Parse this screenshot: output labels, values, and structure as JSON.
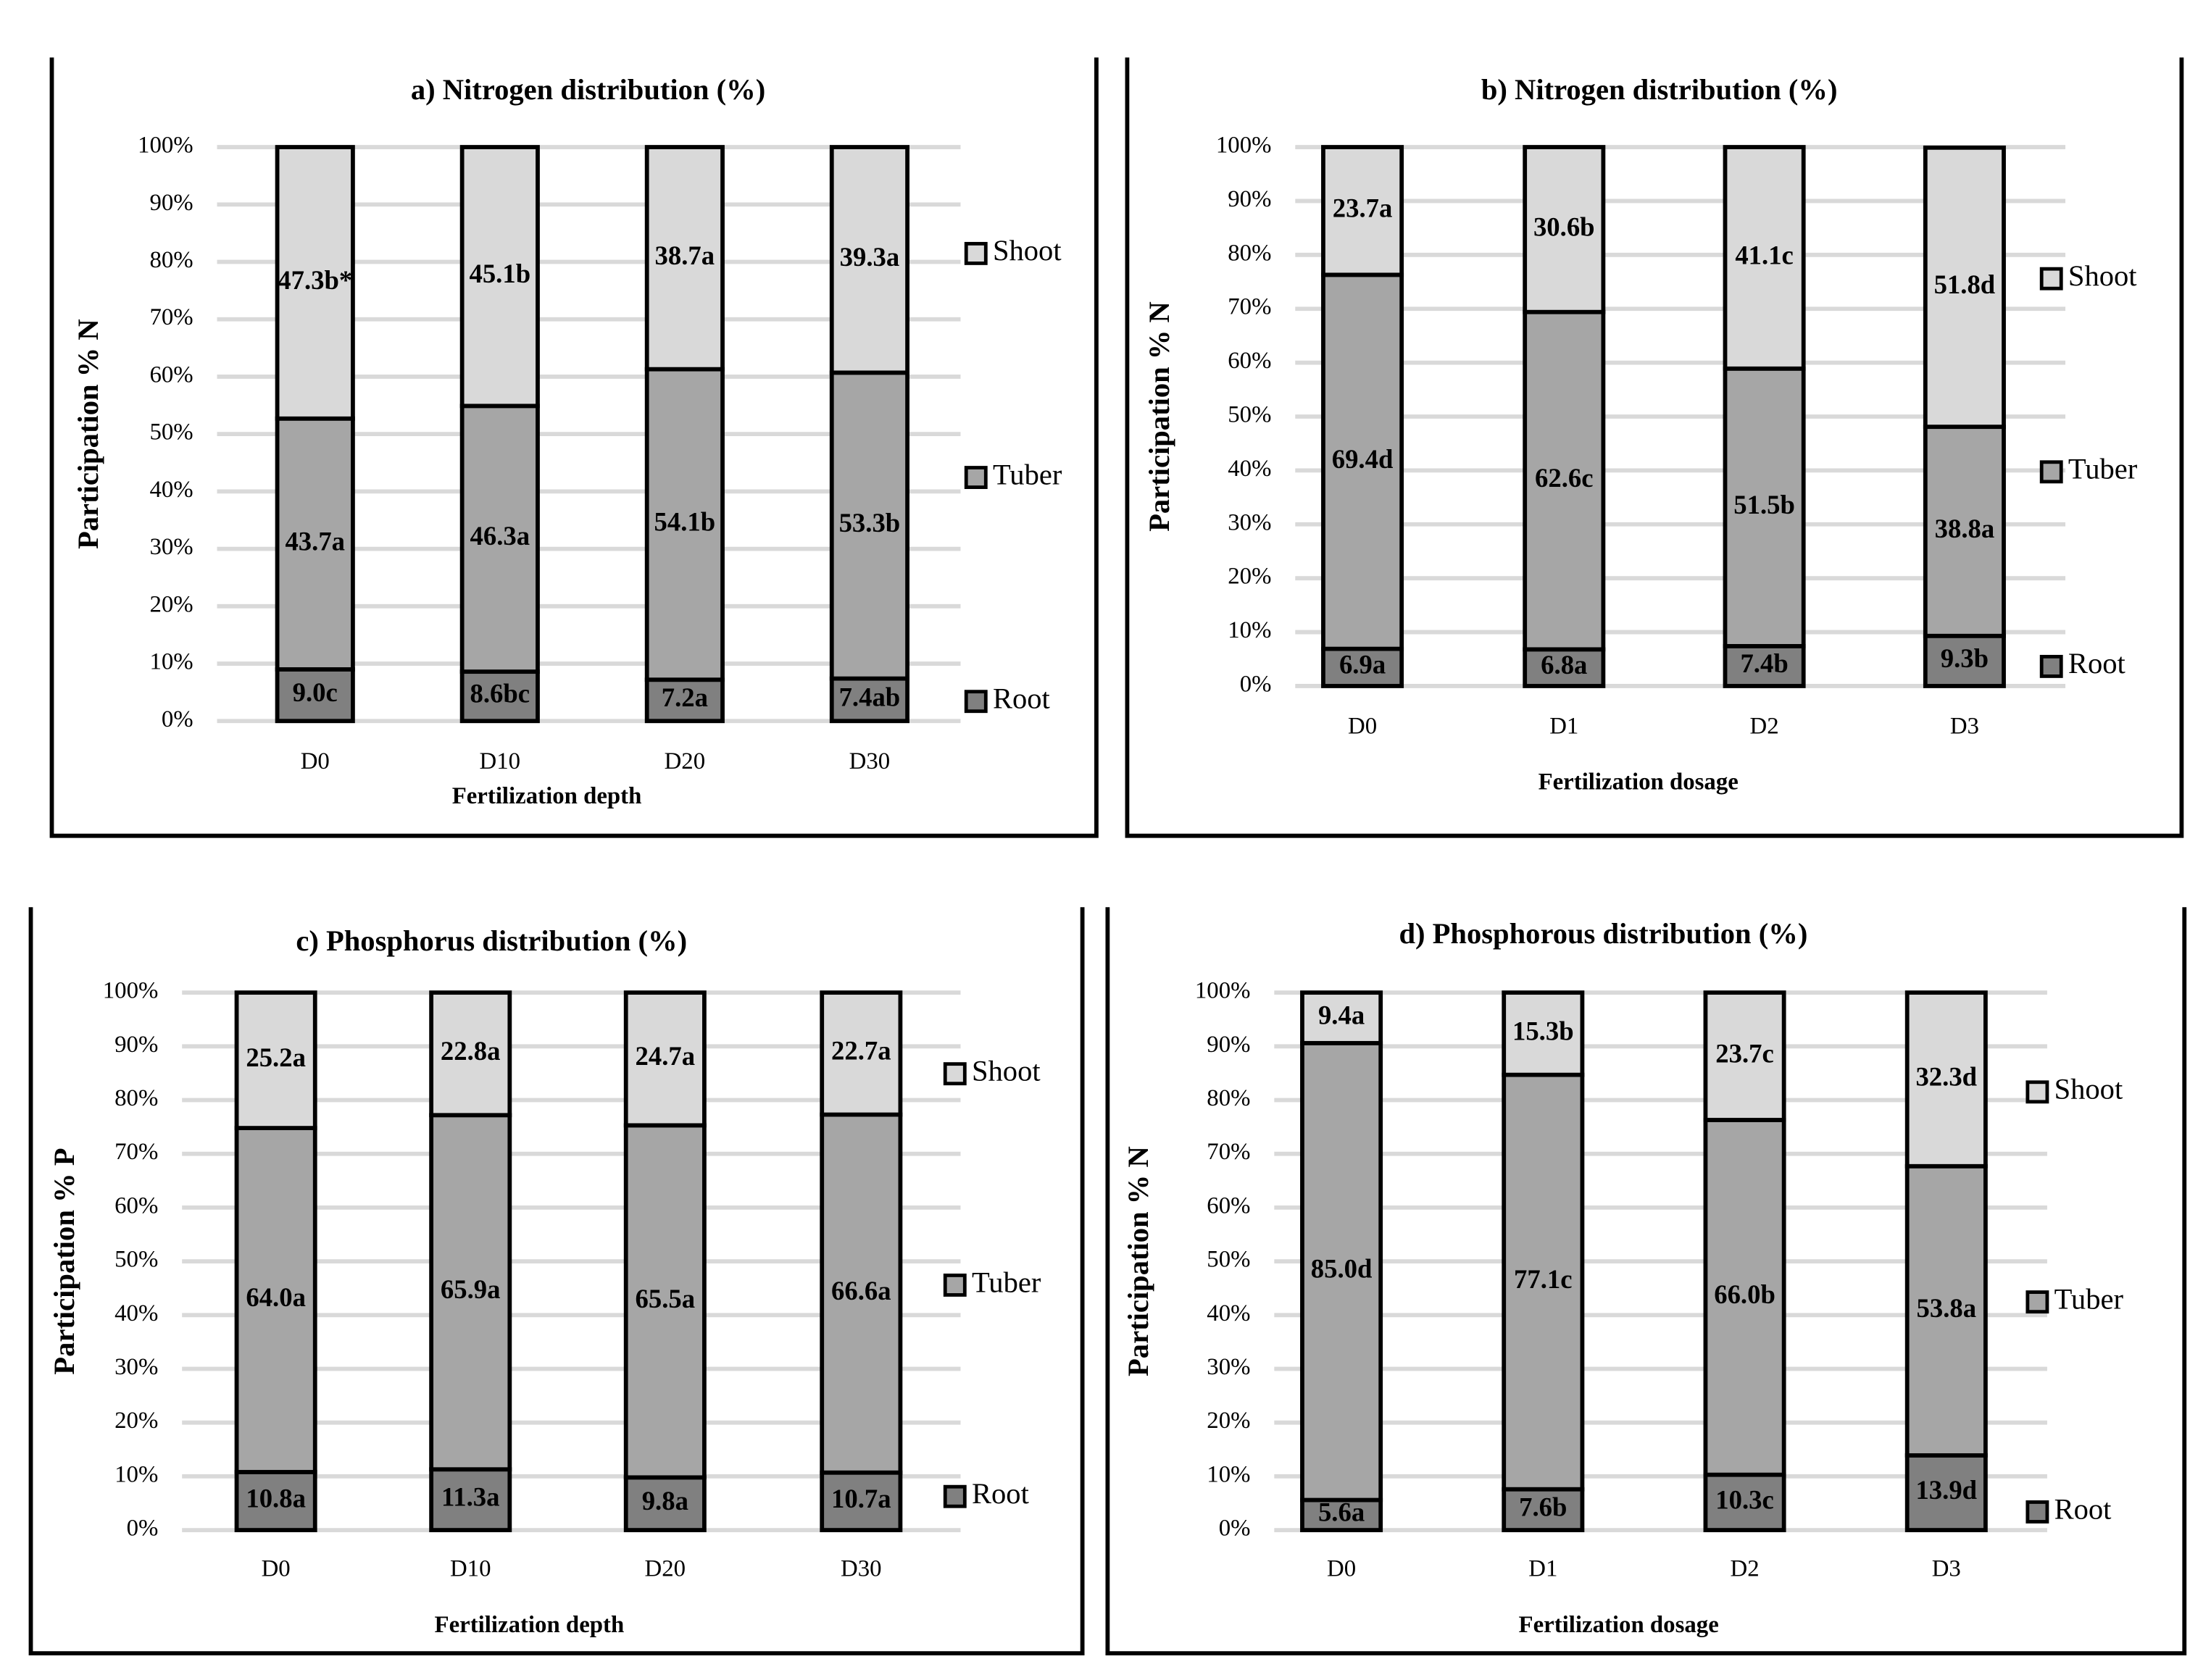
{
  "chart_data": [
    {
      "type": "bar",
      "stacked": true,
      "title": "a) Nitrogen distribution (%)",
      "ylabel": "Participation % N",
      "xlabel": "Fertilization depth",
      "categories": [
        "D0",
        "D10",
        "D20",
        "D30"
      ],
      "series": [
        {
          "name": "Root",
          "color": "#808080",
          "values": [
            9.0,
            8.6,
            7.2,
            7.4
          ],
          "value_labels": [
            "9.0c",
            "8.6bc",
            "7.2a",
            "7.4ab"
          ]
        },
        {
          "name": "Tuber",
          "color": "#a6a6a6",
          "values": [
            43.7,
            46.3,
            54.1,
            53.3
          ],
          "value_labels": [
            "43.7a",
            "46.3a",
            "54.1b",
            "53.3b"
          ]
        },
        {
          "name": "Shoot",
          "color": "#d9d9d9",
          "values": [
            47.3,
            45.1,
            38.7,
            39.3
          ],
          "value_labels": [
            "47.3b*",
            "45.1b",
            "38.7a",
            "39.3a"
          ]
        }
      ],
      "ylim": [
        0,
        100
      ],
      "yticks": [
        {
          "value": 0,
          "label": "0%"
        },
        {
          "value": 10,
          "label": "10%"
        },
        {
          "value": 20,
          "label": "20%"
        },
        {
          "value": 30,
          "label": "30%"
        },
        {
          "value": 40,
          "label": "40%"
        },
        {
          "value": 50,
          "label": "50%"
        },
        {
          "value": 60,
          "label": "60%"
        },
        {
          "value": 70,
          "label": "70%"
        },
        {
          "value": 80,
          "label": "80%"
        },
        {
          "value": 90,
          "label": "90%"
        },
        {
          "value": 100,
          "label": "100%"
        }
      ],
      "grid": true,
      "legend": "right"
    },
    {
      "type": "bar",
      "stacked": true,
      "title": "b) Nitrogen distribution (%)",
      "ylabel": "Participation % N",
      "xlabel": "Fertilization dosage",
      "categories": [
        "D0",
        "D1",
        "D2",
        "D3"
      ],
      "series": [
        {
          "name": "Root",
          "color": "#808080",
          "values": [
            6.9,
            6.8,
            7.4,
            9.3
          ],
          "value_labels": [
            "6.9a",
            "6.8a",
            "7.4b",
            "9.3b"
          ]
        },
        {
          "name": "Tuber",
          "color": "#a6a6a6",
          "values": [
            69.4,
            62.6,
            51.5,
            38.8
          ],
          "value_labels": [
            "69.4d",
            "62.6c",
            "51.5b",
            "38.8a"
          ]
        },
        {
          "name": "Shoot",
          "color": "#d9d9d9",
          "values": [
            23.7,
            30.6,
            41.1,
            51.8
          ],
          "value_labels": [
            "23.7a",
            "30.6b",
            "41.1c",
            "51.8d"
          ]
        }
      ],
      "ylim": [
        0,
        100
      ],
      "yticks": [
        {
          "value": 0,
          "label": "0%"
        },
        {
          "value": 10,
          "label": "10%"
        },
        {
          "value": 20,
          "label": "20%"
        },
        {
          "value": 30,
          "label": "30%"
        },
        {
          "value": 40,
          "label": "40%"
        },
        {
          "value": 50,
          "label": "50%"
        },
        {
          "value": 60,
          "label": "60%"
        },
        {
          "value": 70,
          "label": "70%"
        },
        {
          "value": 80,
          "label": "80%"
        },
        {
          "value": 90,
          "label": "90%"
        },
        {
          "value": 100,
          "label": "100%"
        }
      ],
      "grid": true,
      "legend": "right"
    },
    {
      "type": "bar",
      "stacked": true,
      "title": "c) Phosphorus distribution (%)",
      "ylabel": "Participation % P",
      "xlabel": "Fertilization depth",
      "categories": [
        "D0",
        "D10",
        "D20",
        "D30"
      ],
      "series": [
        {
          "name": "Root",
          "color": "#808080",
          "values": [
            10.8,
            11.3,
            9.8,
            10.7
          ],
          "value_labels": [
            "10.8a",
            "11.3a",
            "9.8a",
            "10.7a"
          ]
        },
        {
          "name": "Tuber",
          "color": "#a6a6a6",
          "values": [
            64.0,
            65.9,
            65.5,
            66.6
          ],
          "value_labels": [
            "64.0a",
            "65.9a",
            "65.5a",
            "66.6a"
          ]
        },
        {
          "name": "Shoot",
          "color": "#d9d9d9",
          "values": [
            25.2,
            22.8,
            24.7,
            22.7
          ],
          "value_labels": [
            "25.2a",
            "22.8a",
            "24.7a",
            "22.7a"
          ]
        }
      ],
      "ylim": [
        0,
        100
      ],
      "yticks": [
        {
          "value": 0,
          "label": "0%"
        },
        {
          "value": 10,
          "label": "10%"
        },
        {
          "value": 20,
          "label": "20%"
        },
        {
          "value": 30,
          "label": "30%"
        },
        {
          "value": 40,
          "label": "40%"
        },
        {
          "value": 50,
          "label": "50%"
        },
        {
          "value": 60,
          "label": "60%"
        },
        {
          "value": 70,
          "label": "70%"
        },
        {
          "value": 80,
          "label": "80%"
        },
        {
          "value": 90,
          "label": "90%"
        },
        {
          "value": 100,
          "label": "100%"
        }
      ],
      "grid": true,
      "legend": "right"
    },
    {
      "type": "bar",
      "stacked": true,
      "title": "d) Phosphorous distribution (%)",
      "ylabel": "Participation % N",
      "xlabel": "Fertilization dosage",
      "categories": [
        "D0",
        "D1",
        "D2",
        "D3"
      ],
      "series": [
        {
          "name": "Root",
          "color": "#808080",
          "values": [
            5.6,
            7.6,
            10.3,
            13.9
          ],
          "value_labels": [
            "5.6a",
            "7.6b",
            "10.3c",
            "13.9d"
          ]
        },
        {
          "name": "Tuber",
          "color": "#a6a6a6",
          "values": [
            85.0,
            77.1,
            66.0,
            53.8
          ],
          "value_labels": [
            "85.0d",
            "77.1c",
            "66.0b",
            "53.8a"
          ]
        },
        {
          "name": "Shoot",
          "color": "#d9d9d9",
          "values": [
            9.4,
            15.3,
            23.7,
            32.3
          ],
          "value_labels": [
            "9.4a",
            "15.3b",
            "23.7c",
            "32.3d"
          ]
        }
      ],
      "ylim": [
        0,
        100
      ],
      "yticks": [
        {
          "value": 0,
          "label": "0%"
        },
        {
          "value": 10,
          "label": "10%"
        },
        {
          "value": 20,
          "label": "20%"
        },
        {
          "value": 30,
          "label": "30%"
        },
        {
          "value": 40,
          "label": "40%"
        },
        {
          "value": 50,
          "label": "50%"
        },
        {
          "value": 60,
          "label": "60%"
        },
        {
          "value": 70,
          "label": "70%"
        },
        {
          "value": 80,
          "label": "80%"
        },
        {
          "value": 90,
          "label": "90%"
        },
        {
          "value": 100,
          "label": "100%"
        }
      ],
      "grid": true,
      "legend": "right"
    }
  ]
}
